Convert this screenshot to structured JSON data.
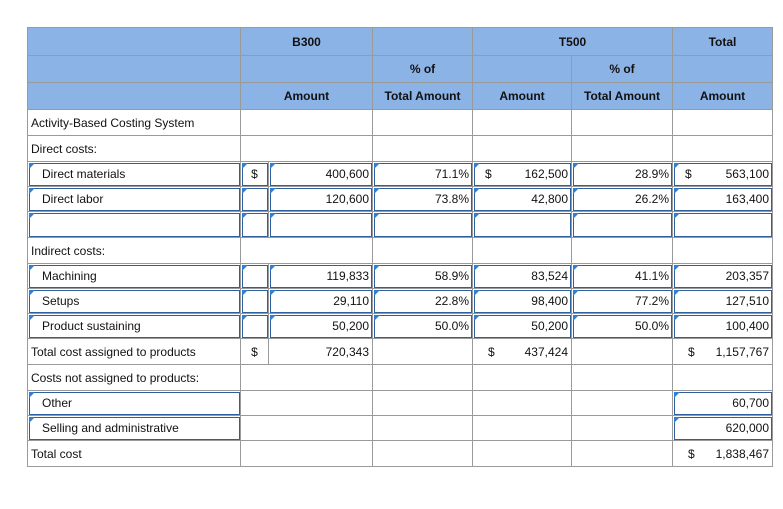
{
  "header": {
    "row1": [
      "",
      "",
      "B300",
      "",
      "",
      "T500",
      "",
      "Total"
    ],
    "row2": [
      "",
      "",
      "",
      "% of",
      "",
      "",
      "% of",
      ""
    ],
    "row3": [
      "",
      "",
      "Amount",
      "Total Amount",
      "Amount",
      "Total Amount",
      "Amount"
    ]
  },
  "rows": [
    {
      "label": "Activity-Based Costing System"
    },
    {
      "label": "Direct costs:"
    },
    {
      "label": "Direct materials",
      "b_dollar": "$",
      "b_amt": "400,600",
      "b_pct": "71.1%",
      "t_dollar": "$",
      "t_amt": "162,500",
      "t_pct": "28.9%",
      "tot_dollar": "$",
      "tot_amt": "563,100"
    },
    {
      "label": "Direct labor",
      "b_amt": "120,600",
      "b_pct": "73.8%",
      "t_amt": "42,800",
      "t_pct": "26.2%",
      "tot_amt": "163,400"
    },
    {
      "label": ""
    },
    {
      "label": "Indirect costs:"
    },
    {
      "label": "Machining",
      "b_amt": "119,833",
      "b_pct": "58.9%",
      "t_amt": "83,524",
      "t_pct": "41.1%",
      "tot_amt": "203,357"
    },
    {
      "label": "Setups",
      "b_amt": "29,110",
      "b_pct": "22.8%",
      "t_amt": "98,400",
      "t_pct": "77.2%",
      "tot_amt": "127,510"
    },
    {
      "label": "Product sustaining",
      "b_amt": "50,200",
      "b_pct": "50.0%",
      "t_amt": "50,200",
      "t_pct": "50.0%",
      "tot_amt": "100,400"
    },
    {
      "label": "Total cost assigned to products",
      "b_dollar": "$",
      "b_amt": "720,343",
      "t_dollar": "$",
      "t_amt": "437,424",
      "tot_dollar": "$",
      "tot_amt": "1,157,767"
    },
    {
      "label": "Costs not assigned to products:"
    },
    {
      "label": "Other",
      "tot_amt": "60,700"
    },
    {
      "label": "Selling and administrative",
      "tot_amt": "620,000"
    },
    {
      "label": "Total cost",
      "tot_dollar": "$",
      "tot_amt": "1,838,467"
    }
  ]
}
